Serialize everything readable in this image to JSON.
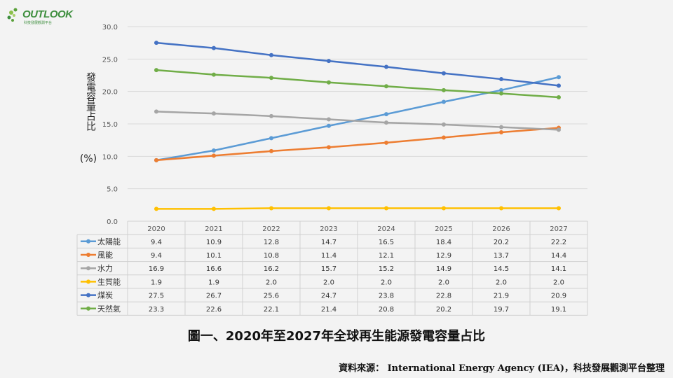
{
  "branding": {
    "logo_text": "OUTLOOK",
    "logo_subtext": "科技發展觀測平台"
  },
  "chart_data": {
    "type": "line",
    "title": "",
    "ylabel": "發電容量占比",
    "ylabel_unit": "(%)",
    "xlabel": "",
    "ylim": [
      0,
      30
    ],
    "yticks": [
      "0.0",
      "5.0",
      "10.0",
      "15.0",
      "20.0",
      "25.0",
      "30.0"
    ],
    "grid": true,
    "legend": "data-table",
    "categories": [
      "2020",
      "2021",
      "2022",
      "2023",
      "2024",
      "2025",
      "2026",
      "2027"
    ],
    "series": [
      {
        "name": "太陽能",
        "color": "#5b9bd5",
        "values": [
          9.4,
          10.9,
          12.8,
          14.7,
          16.5,
          18.4,
          20.2,
          22.2
        ],
        "labels": [
          "9.4",
          "10.9",
          "12.8",
          "14.7",
          "16.5",
          "18.4",
          "20.2",
          "22.2"
        ]
      },
      {
        "name": "風能",
        "color": "#ed7d31",
        "values": [
          9.4,
          10.1,
          10.8,
          11.4,
          12.1,
          12.9,
          13.7,
          14.4
        ],
        "labels": [
          "9.4",
          "10.1",
          "10.8",
          "11.4",
          "12.1",
          "12.9",
          "13.7",
          "14.4"
        ]
      },
      {
        "name": "水力",
        "color": "#a5a5a5",
        "values": [
          16.9,
          16.6,
          16.2,
          15.7,
          15.2,
          14.9,
          14.5,
          14.1
        ],
        "labels": [
          "16.9",
          "16.6",
          "16.2",
          "15.7",
          "15.2",
          "14.9",
          "14.5",
          "14.1"
        ]
      },
      {
        "name": "生質能",
        "color": "#ffc000",
        "values": [
          1.9,
          1.9,
          2.0,
          2.0,
          2.0,
          2.0,
          2.0,
          2.0
        ],
        "labels": [
          "1.9",
          "1.9",
          "2.0",
          "2.0",
          "2.0",
          "2.0",
          "2.0",
          "2.0"
        ]
      },
      {
        "name": "煤炭",
        "color": "#4472c4",
        "values": [
          27.5,
          26.7,
          25.6,
          24.7,
          23.8,
          22.8,
          21.9,
          20.9
        ],
        "labels": [
          "27.5",
          "26.7",
          "25.6",
          "24.7",
          "23.8",
          "22.8",
          "21.9",
          "20.9"
        ]
      },
      {
        "name": "天然氣",
        "color": "#70ad47",
        "values": [
          23.3,
          22.6,
          22.1,
          21.4,
          20.8,
          20.2,
          19.7,
          19.1
        ],
        "labels": [
          "23.3",
          "22.6",
          "22.1",
          "21.4",
          "20.8",
          "20.2",
          "19.7",
          "19.1"
        ]
      }
    ]
  },
  "caption": "圖一、2020年至2027年全球再生能源發電容量占比",
  "source": "資料來源： International  Energy Agency (IEA)，科技發展觀測平台整理"
}
